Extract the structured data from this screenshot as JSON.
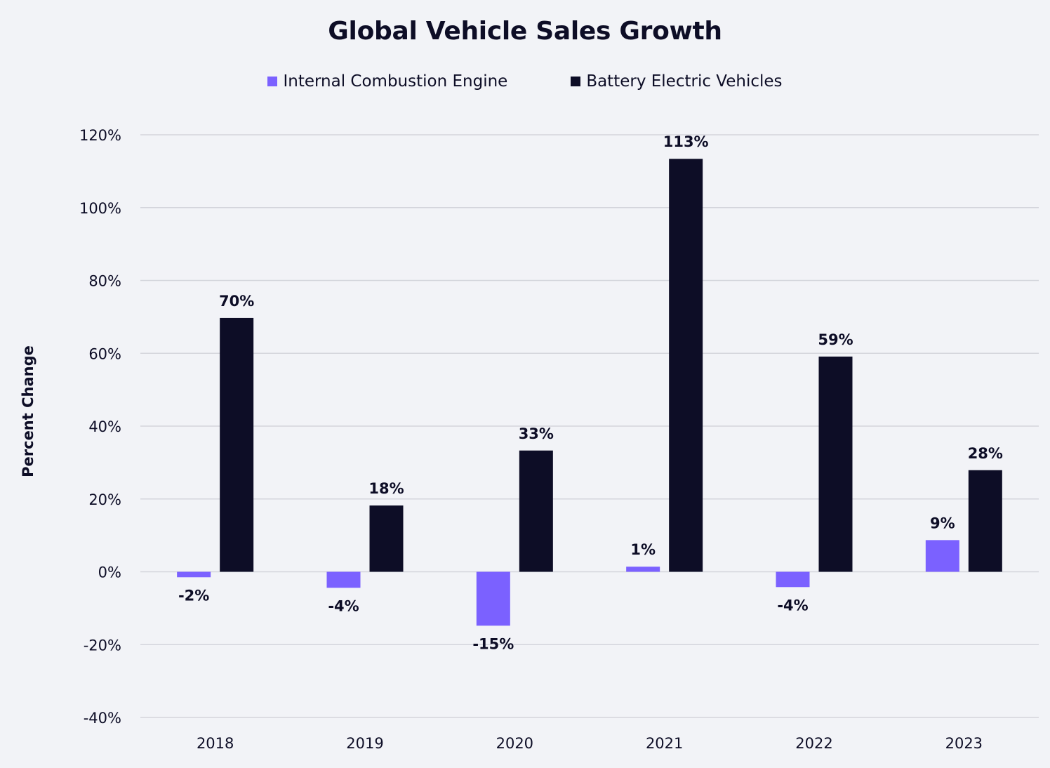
{
  "chart_data": {
    "type": "bar",
    "title": "Global Vehicle Sales Growth",
    "ylabel": "Percent Change",
    "xlabel": "",
    "categories": [
      "2018",
      "2019",
      "2020",
      "2021",
      "2022",
      "2023"
    ],
    "series": [
      {
        "name": "Internal Combustion Engine",
        "color": "#7b61ff",
        "values": [
          -1.5,
          -4.4,
          -14.8,
          1.4,
          -4.2,
          8.7
        ],
        "labels": [
          "-2%",
          "-4%",
          "-15%",
          "1%",
          "-4%",
          "9%"
        ]
      },
      {
        "name": "Battery Electric Vehicles",
        "color": "#0d0d26",
        "values": [
          69.7,
          18.2,
          33.3,
          113.4,
          59.1,
          27.9
        ],
        "labels": [
          "70%",
          "18%",
          "33%",
          "113%",
          "59%",
          "28%"
        ]
      }
    ],
    "ylim": [
      -40,
      120
    ],
    "yticks": [
      120,
      100,
      80,
      60,
      40,
      20,
      0,
      -20,
      -40
    ],
    "ytick_labels": [
      "120%",
      "100%",
      "80%",
      "60%",
      "40%",
      "20%",
      "0%",
      "-20%",
      "-40%"
    ],
    "grid": true,
    "legend_position": "top-center"
  }
}
